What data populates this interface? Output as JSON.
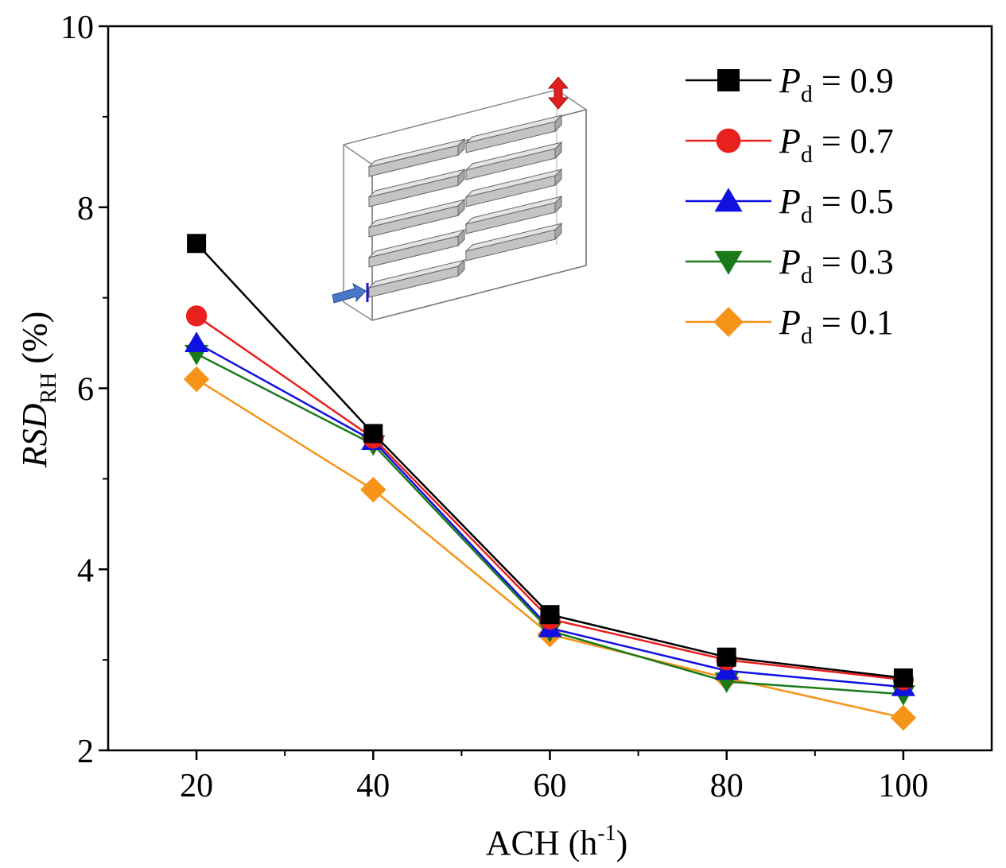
{
  "chart_data": {
    "type": "line",
    "title": "",
    "xlabel": {
      "base": "ACH (h",
      "sup": "-1",
      "tail": ")"
    },
    "ylabel": {
      "base": "RSD",
      "sub": "RH",
      "tail": " (%)"
    },
    "x": [
      20,
      40,
      60,
      80,
      100
    ],
    "xlim": [
      10,
      110
    ],
    "ylim": [
      2,
      10
    ],
    "xticks": [
      "20",
      "40",
      "60",
      "80",
      "100"
    ],
    "yticks": [
      "2",
      "4",
      "6",
      "8",
      "10"
    ],
    "grid": false,
    "legend_position": "top-right",
    "series": [
      {
        "name": "P",
        "sub": "d",
        "value_text": " = 0.9",
        "marker": "square",
        "color": "#000000",
        "values": [
          7.6,
          5.5,
          3.5,
          3.03,
          2.8
        ]
      },
      {
        "name": "P",
        "sub": "d",
        "value_text": " = 0.7",
        "marker": "circle",
        "color": "#e8201e",
        "values": [
          6.8,
          5.45,
          3.45,
          3.0,
          2.78
        ]
      },
      {
        "name": "P",
        "sub": "d",
        "value_text": " = 0.5",
        "marker": "triangle-up",
        "color": "#1010e0",
        "values": [
          6.5,
          5.42,
          3.35,
          2.88,
          2.7
        ]
      },
      {
        "name": "P",
        "sub": "d",
        "value_text": " = 0.3",
        "marker": "triangle-down",
        "color": "#1a7a1a",
        "values": [
          6.38,
          5.38,
          3.32,
          2.76,
          2.62
        ]
      },
      {
        "name": "P",
        "sub": "d",
        "value_text": " = 0.1",
        "marker": "diamond",
        "color": "#f59418",
        "values": [
          6.1,
          4.88,
          3.28,
          2.8,
          2.36
        ]
      }
    ],
    "inset": {
      "description": "3D room diagram with shelves",
      "inlet_color": "#4a78c8",
      "outlet_color": "#e02020"
    }
  }
}
